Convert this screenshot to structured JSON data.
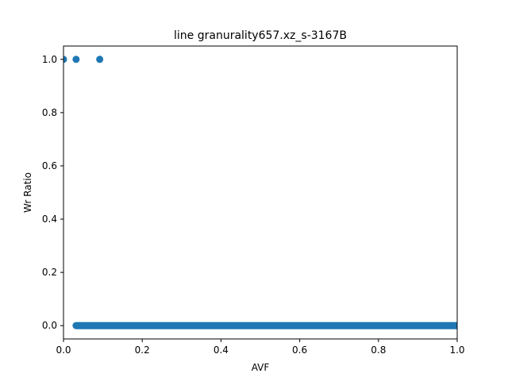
{
  "chart_data": {
    "type": "scatter",
    "title": "line granurality657.xz_s-3167B",
    "xlabel": "AVF",
    "ylabel": "Wr Ratio",
    "xlim": [
      0.0,
      1.0
    ],
    "ylim": [
      -0.05,
      1.05
    ],
    "xticks": [
      "0.0",
      "0.2",
      "0.4",
      "0.6",
      "0.8",
      "1.0"
    ],
    "yticks": [
      "0.0",
      "0.2",
      "0.4",
      "0.6",
      "0.8",
      "1.0"
    ],
    "grid": false,
    "color": "#1f77b4",
    "series": [
      {
        "points": [
          [
            0.0,
            1.0
          ],
          [
            0.032,
            1.0
          ],
          [
            0.092,
            1.0
          ]
        ]
      },
      {
        "x_range": [
          0.032,
          1.0
        ],
        "y": 0.0
      }
    ]
  }
}
